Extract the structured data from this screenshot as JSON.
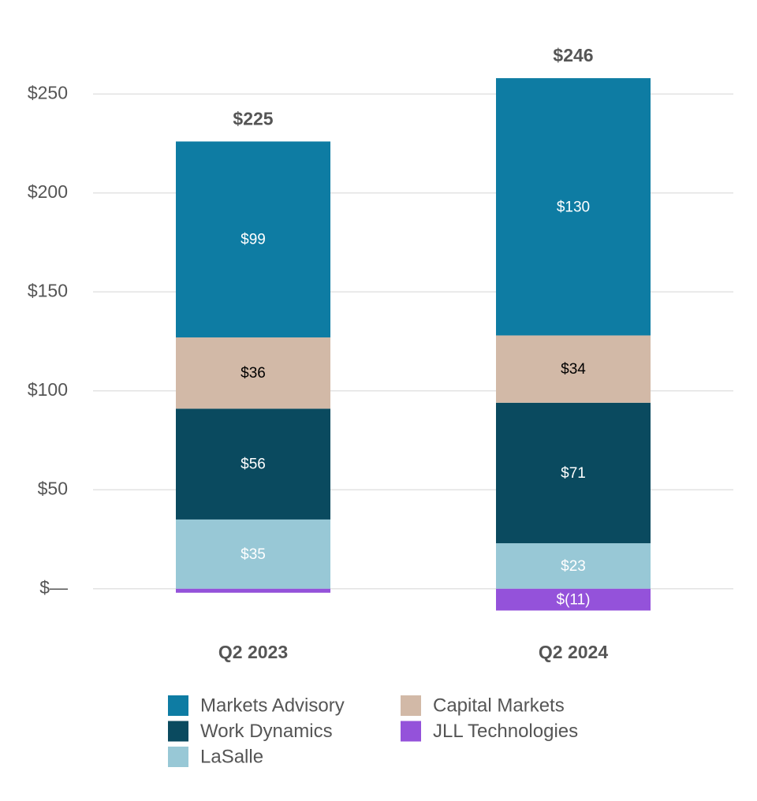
{
  "chart_data": {
    "type": "stacked-bar",
    "categories": [
      "Q2 2023",
      "Q2 2024"
    ],
    "series": [
      {
        "name": "Markets Advisory",
        "color": "#0e7ca3",
        "label_color": "#ffffff",
        "values": [
          99,
          130
        ],
        "value_labels": [
          "$99",
          "$130"
        ]
      },
      {
        "name": "Capital Markets",
        "color": "#d2b9a7",
        "label_color": "#000000",
        "values": [
          36,
          34
        ],
        "value_labels": [
          "$36",
          "$34"
        ]
      },
      {
        "name": "Work Dynamics",
        "color": "#0a4a5f",
        "label_color": "#ffffff",
        "values": [
          56,
          71
        ],
        "value_labels": [
          "$56",
          "$71"
        ]
      },
      {
        "name": "JLL Technologies",
        "color": "#9452da",
        "label_color": "#ffffff",
        "values": [
          -2,
          -11
        ],
        "value_labels": [
          null,
          "$(11)"
        ]
      },
      {
        "name": "LaSalle",
        "color": "#98c8d6",
        "label_color": "#ffffff",
        "values": [
          35,
          23
        ],
        "value_labels": [
          "$35",
          "$23"
        ]
      }
    ],
    "totals": {
      "values": [
        225,
        246
      ],
      "value_labels": [
        "$225",
        "$246"
      ]
    },
    "ylim": [
      -20,
      270
    ],
    "yticks": [
      {
        "value": 0,
        "label": "$—"
      },
      {
        "value": 50,
        "label": "$50"
      },
      {
        "value": 100,
        "label": "$100"
      },
      {
        "value": 150,
        "label": "$150"
      },
      {
        "value": 200,
        "label": "$200"
      },
      {
        "value": 250,
        "label": "$250"
      }
    ],
    "grid": true,
    "legend": "bottom"
  }
}
